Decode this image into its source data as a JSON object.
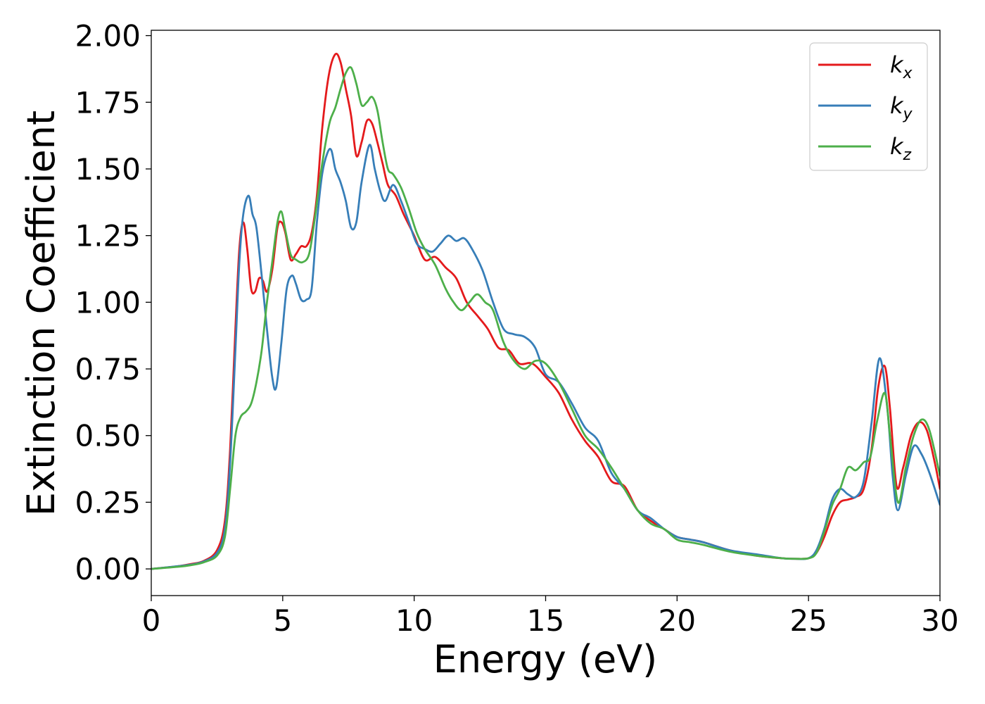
{
  "chart_data": {
    "type": "line",
    "title": "",
    "xlabel": "Energy (eV)",
    "ylabel": "Extinction Coefficient",
    "xlim": [
      0,
      30
    ],
    "ylim": [
      -0.1,
      2.02
    ],
    "xticks": [
      0,
      5,
      10,
      15,
      20,
      25,
      30
    ],
    "xtick_labels": [
      "0",
      "5",
      "10",
      "15",
      "20",
      "25",
      "30"
    ],
    "yticks": [
      0,
      0.25,
      0.5,
      0.75,
      1.0,
      1.25,
      1.5,
      1.75,
      2.0
    ],
    "ytick_labels": [
      "0.00",
      "0.25",
      "0.50",
      "0.75",
      "1.00",
      "1.25",
      "1.50",
      "1.75",
      "2.00"
    ],
    "grid": false,
    "legend_position": "top-right",
    "series": [
      {
        "name": "k",
        "subscript": "x",
        "color": "#e41a1c",
        "x": [
          0,
          1,
          1.5,
          2,
          2.5,
          2.8,
          3.0,
          3.2,
          3.35,
          3.5,
          3.65,
          3.8,
          3.95,
          4.1,
          4.25,
          4.4,
          4.6,
          4.8,
          4.95,
          5.1,
          5.3,
          5.5,
          5.7,
          5.9,
          6.1,
          6.3,
          6.5,
          6.75,
          7.0,
          7.2,
          7.4,
          7.6,
          7.8,
          8.0,
          8.2,
          8.4,
          8.6,
          8.8,
          9.0,
          9.3,
          9.6,
          10.0,
          10.4,
          10.8,
          11.2,
          11.6,
          12.0,
          12.4,
          12.8,
          13.2,
          13.6,
          14.0,
          14.5,
          15.0,
          15.5,
          16.0,
          16.5,
          17.0,
          17.5,
          18.0,
          18.5,
          19.0,
          19.5,
          20.0,
          20.5,
          21.0,
          22.0,
          23.0,
          24.0,
          24.5,
          25.0,
          25.3,
          25.6,
          25.9,
          26.2,
          26.5,
          26.8,
          27.1,
          27.4,
          27.65,
          27.9,
          28.1,
          28.35,
          28.6,
          28.9,
          29.2,
          29.5,
          29.8,
          30.0
        ],
        "y": [
          0.0,
          0.01,
          0.018,
          0.03,
          0.07,
          0.18,
          0.45,
          0.9,
          1.2,
          1.3,
          1.2,
          1.05,
          1.04,
          1.09,
          1.08,
          1.04,
          1.12,
          1.28,
          1.3,
          1.26,
          1.16,
          1.18,
          1.21,
          1.21,
          1.26,
          1.4,
          1.65,
          1.85,
          1.93,
          1.9,
          1.8,
          1.7,
          1.55,
          1.6,
          1.68,
          1.67,
          1.6,
          1.52,
          1.44,
          1.4,
          1.33,
          1.25,
          1.16,
          1.17,
          1.13,
          1.09,
          1.0,
          0.95,
          0.9,
          0.83,
          0.82,
          0.77,
          0.77,
          0.72,
          0.66,
          0.56,
          0.48,
          0.42,
          0.33,
          0.31,
          0.22,
          0.18,
          0.15,
          0.12,
          0.11,
          0.1,
          0.07,
          0.05,
          0.04,
          0.038,
          0.04,
          0.06,
          0.12,
          0.2,
          0.25,
          0.26,
          0.27,
          0.3,
          0.45,
          0.68,
          0.76,
          0.6,
          0.31,
          0.38,
          0.5,
          0.55,
          0.52,
          0.4,
          0.3
        ]
      },
      {
        "name": "k",
        "subscript": "y",
        "color": "#377eb8",
        "x": [
          0,
          1,
          1.5,
          2,
          2.5,
          2.8,
          3.0,
          3.2,
          3.35,
          3.5,
          3.7,
          3.85,
          4.0,
          4.2,
          4.4,
          4.6,
          4.75,
          4.95,
          5.15,
          5.35,
          5.5,
          5.7,
          5.9,
          6.1,
          6.3,
          6.5,
          6.7,
          6.85,
          7.0,
          7.2,
          7.4,
          7.6,
          7.8,
          8.0,
          8.3,
          8.5,
          8.7,
          8.9,
          9.2,
          9.5,
          9.8,
          10.1,
          10.4,
          10.7,
          11.0,
          11.3,
          11.6,
          11.9,
          12.2,
          12.6,
          13.0,
          13.4,
          13.8,
          14.2,
          14.6,
          15.0,
          15.5,
          16.0,
          16.5,
          17.0,
          17.5,
          18.0,
          18.5,
          19.0,
          19.5,
          20.0,
          20.5,
          21.0,
          22.0,
          23.0,
          24.0,
          24.5,
          25.0,
          25.3,
          25.6,
          25.9,
          26.2,
          26.5,
          26.8,
          27.1,
          27.4,
          27.7,
          28.0,
          28.2,
          28.4,
          28.7,
          29.0,
          29.3,
          29.6,
          30.0
        ],
        "y": [
          0.0,
          0.01,
          0.016,
          0.028,
          0.06,
          0.15,
          0.4,
          0.82,
          1.15,
          1.33,
          1.4,
          1.33,
          1.28,
          1.1,
          0.9,
          0.72,
          0.68,
          0.85,
          1.05,
          1.1,
          1.07,
          1.01,
          1.01,
          1.05,
          1.3,
          1.48,
          1.56,
          1.57,
          1.5,
          1.45,
          1.38,
          1.28,
          1.3,
          1.45,
          1.59,
          1.5,
          1.42,
          1.38,
          1.44,
          1.38,
          1.3,
          1.22,
          1.2,
          1.19,
          1.22,
          1.25,
          1.23,
          1.24,
          1.2,
          1.12,
          1.0,
          0.9,
          0.88,
          0.87,
          0.83,
          0.73,
          0.7,
          0.62,
          0.53,
          0.48,
          0.36,
          0.3,
          0.22,
          0.19,
          0.15,
          0.12,
          0.11,
          0.1,
          0.07,
          0.055,
          0.04,
          0.038,
          0.04,
          0.07,
          0.15,
          0.26,
          0.3,
          0.28,
          0.27,
          0.33,
          0.55,
          0.79,
          0.6,
          0.35,
          0.22,
          0.35,
          0.46,
          0.43,
          0.36,
          0.24
        ]
      },
      {
        "name": "k",
        "subscript": "z",
        "color": "#4daf4a",
        "x": [
          0,
          1,
          1.5,
          2,
          2.5,
          2.8,
          3.0,
          3.2,
          3.4,
          3.6,
          3.8,
          4.0,
          4.2,
          4.4,
          4.6,
          4.8,
          4.95,
          5.1,
          5.3,
          5.5,
          5.75,
          6.0,
          6.2,
          6.4,
          6.6,
          6.8,
          7.0,
          7.2,
          7.4,
          7.6,
          7.8,
          8.0,
          8.2,
          8.4,
          8.6,
          8.8,
          9.0,
          9.2,
          9.5,
          9.8,
          10.1,
          10.4,
          10.8,
          11.2,
          11.5,
          11.8,
          12.1,
          12.4,
          12.7,
          13.0,
          13.4,
          13.8,
          14.2,
          14.6,
          15.0,
          15.5,
          16.0,
          16.5,
          17.0,
          17.5,
          18.0,
          18.5,
          19.0,
          19.5,
          20.0,
          20.5,
          21.0,
          22.0,
          23.0,
          24.0,
          24.5,
          25.0,
          25.3,
          25.6,
          25.9,
          26.2,
          26.5,
          26.8,
          27.1,
          27.35,
          27.6,
          27.9,
          28.1,
          28.4,
          28.7,
          29.0,
          29.3,
          29.6,
          30.0
        ],
        "y": [
          0.0,
          0.008,
          0.014,
          0.025,
          0.05,
          0.12,
          0.3,
          0.5,
          0.57,
          0.59,
          0.62,
          0.7,
          0.82,
          1.0,
          1.15,
          1.3,
          1.34,
          1.27,
          1.18,
          1.16,
          1.15,
          1.18,
          1.3,
          1.45,
          1.58,
          1.68,
          1.73,
          1.8,
          1.86,
          1.88,
          1.82,
          1.74,
          1.75,
          1.77,
          1.72,
          1.6,
          1.5,
          1.48,
          1.43,
          1.35,
          1.26,
          1.2,
          1.14,
          1.05,
          1.0,
          0.97,
          1.0,
          1.03,
          1.0,
          0.97,
          0.85,
          0.78,
          0.75,
          0.78,
          0.77,
          0.7,
          0.6,
          0.5,
          0.45,
          0.38,
          0.3,
          0.22,
          0.17,
          0.15,
          0.11,
          0.1,
          0.09,
          0.065,
          0.05,
          0.04,
          0.038,
          0.04,
          0.06,
          0.14,
          0.24,
          0.3,
          0.38,
          0.37,
          0.4,
          0.42,
          0.55,
          0.66,
          0.5,
          0.25,
          0.38,
          0.5,
          0.56,
          0.52,
          0.35
        ]
      }
    ]
  }
}
